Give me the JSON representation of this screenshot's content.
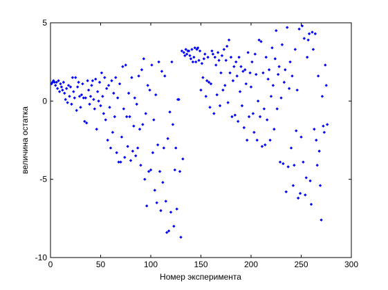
{
  "chart_data": {
    "type": "scatter",
    "xlabel": "Номер эксперимента",
    "ylabel": "величина остатка",
    "xlim": [
      0,
      300
    ],
    "ylim": [
      -10,
      5
    ],
    "xticks": [
      0,
      50,
      100,
      150,
      200,
      250,
      300
    ],
    "yticks": [
      -10,
      -5,
      0,
      5
    ],
    "color": "#0000ff",
    "x": [
      1,
      2,
      3,
      4,
      5,
      6,
      7,
      8,
      9,
      10,
      11,
      12,
      13,
      14,
      15,
      16,
      17,
      18,
      19,
      20,
      21,
      22,
      23,
      24,
      25,
      26,
      27,
      28,
      29,
      30,
      31,
      32,
      33,
      34,
      35,
      36,
      37,
      38,
      39,
      40,
      41,
      42,
      43,
      44,
      45,
      46,
      47,
      48,
      49,
      50,
      51,
      52,
      53,
      54,
      55,
      56,
      57,
      58,
      59,
      60,
      61,
      62,
      63,
      64,
      65,
      66,
      67,
      68,
      69,
      70,
      71,
      72,
      73,
      74,
      75,
      76,
      77,
      78,
      79,
      80,
      81,
      82,
      83,
      84,
      85,
      86,
      87,
      88,
      89,
      90,
      91,
      92,
      93,
      94,
      95,
      96,
      97,
      98,
      99,
      100,
      101,
      102,
      103,
      104,
      105,
      106,
      107,
      108,
      109,
      110,
      111,
      112,
      113,
      114,
      115,
      116,
      117,
      118,
      119,
      120,
      121,
      122,
      123,
      124,
      125,
      126,
      127,
      128,
      129,
      130,
      131,
      132,
      133,
      134,
      135,
      136,
      137,
      138,
      139,
      140,
      141,
      142,
      143,
      144,
      145,
      146,
      147,
      148,
      149,
      150,
      151,
      152,
      153,
      154,
      155,
      156,
      157,
      158,
      159,
      160,
      161,
      162,
      163,
      164,
      165,
      166,
      167,
      168,
      169,
      170,
      171,
      172,
      173,
      174,
      175,
      176,
      177,
      178,
      179,
      180,
      181,
      182,
      183,
      184,
      185,
      186,
      187,
      188,
      189,
      190,
      191,
      192,
      193,
      194,
      195,
      196,
      197,
      198,
      199,
      200,
      201,
      202,
      203,
      204,
      205,
      206,
      207,
      208,
      209,
      210,
      211,
      212,
      213,
      214,
      215,
      216,
      217,
      218,
      219,
      220,
      221,
      222,
      223,
      224,
      225,
      226,
      227,
      228,
      229,
      230,
      231,
      232,
      233,
      234,
      235,
      236,
      237,
      238,
      239,
      240,
      241,
      242,
      243,
      244,
      245,
      246,
      247,
      248,
      249,
      250,
      251,
      252,
      253,
      254,
      255,
      256,
      257,
      258,
      259,
      260,
      261,
      262,
      263,
      264,
      265,
      266,
      267,
      268,
      269,
      270,
      271,
      272,
      273,
      274,
      275,
      276
    ],
    "y": [
      1.1,
      1.2,
      1.3,
      1.2,
      1.0,
      1.2,
      0.8,
      1.3,
      0.6,
      1.1,
      0.9,
      0.7,
      1.2,
      0.5,
      0.1,
      0.8,
      -0.1,
      1.0,
      0.3,
      0.9,
      -0.2,
      1.5,
      0.6,
      0.2,
      1.5,
      -0.6,
      0.9,
      1.2,
      0.3,
      -0.4,
      0.4,
      1.1,
      0.2,
      -1.3,
      0.2,
      -1.4,
      1.3,
      0.7,
      -0.2,
      0.3,
      1.0,
      1.3,
      0.1,
      -0.5,
      1.4,
      -1.8,
      0.6,
      0.0,
      1.2,
      -0.3,
      1.8,
      0.3,
      -0.8,
      1.5,
      -1.2,
      0.8,
      -2.5,
      1.0,
      -0.4,
      -3.0,
      1.3,
      -2.0,
      0.5,
      -1.0,
      1.5,
      -3.3,
      0.2,
      -3.9,
      1.1,
      -3.9,
      -2.3,
      2.2,
      -0.5,
      -3.6,
      2.3,
      -1.0,
      -2.9,
      0.5,
      -1.0,
      -3.8,
      1.5,
      -3.2,
      -1.6,
      0.2,
      -3.5,
      -0.2,
      -3.0,
      1.6,
      -1.8,
      -4.1,
      2.0,
      -1.5,
      2.7,
      -5.0,
      -0.8,
      -6.7,
      1.0,
      -4.5,
      0.7,
      -4.4,
      2.3,
      -3.3,
      -1.2,
      -5.7,
      0.4,
      -6.5,
      -2.8,
      2.5,
      -4.5,
      -7.0,
      1.9,
      -5.2,
      -3.0,
      1.6,
      -6.4,
      -8.4,
      -2.4,
      -8.3,
      -0.7,
      -7.1,
      2.5,
      -1.5,
      -8.0,
      -4.4,
      -3.0,
      -6.9,
      0.1,
      0.1,
      -4.5,
      -8.7,
      3.2,
      -3.7,
      3.1,
      2.9,
      3.3,
      3.0,
      3.2,
      3.2,
      2.9,
      2.7,
      3.3,
      2.5,
      2.8,
      3.4,
      2.5,
      3.3,
      3.4,
      2.6,
      3.2,
      0.7,
      2.4,
      1.5,
      2.7,
      3.0,
      0.3,
      1.3,
      2.8,
      1.2,
      -0.4,
      1.1,
      3.2,
      3.0,
      -0.8,
      2.8,
      2.3,
      0.4,
      3.1,
      2.6,
      -0.3,
      1.8,
      2.9,
      0.7,
      3.3,
      1.0,
      2.6,
      3.5,
      -0.1,
      3.9,
      1.8,
      2.8,
      -1.0,
      1.3,
      2.2,
      -0.9,
      2.5,
      1.6,
      -1.3,
      2.8,
      0.6,
      2.2,
      -0.3,
      1.9,
      -1.7,
      2.0,
      1.1,
      -2.5,
      3.1,
      -1.0,
      1.8,
      0.9,
      2.5,
      -0.8,
      -2.0,
      3.0,
      1.7,
      -2.5,
      0.0,
      3.9,
      -1.0,
      3.8,
      -2.9,
      1.8,
      -0.5,
      -2.8,
      2.8,
      -1.2,
      1.4,
      2.0,
      -2.5,
      0.3,
      3.4,
      1.0,
      -1.8,
      2.7,
      4.5,
      -0.5,
      1.7,
      2.2,
      -3.9,
      0.2,
      3.6,
      -4.0,
      1.2,
      2.0,
      -5.8,
      4.7,
      -4.2,
      0.8,
      2.5,
      -3.0,
      1.6,
      -5.4,
      -4.1,
      3.3,
      -1.9,
      0.7,
      -6.2,
      4.6,
      -5.9,
      -2.3,
      4.8,
      -3.9,
      4.0,
      -6.0,
      -4.9,
      2.8,
      3.9,
      4.3,
      -5.1,
      -6.6,
      4.4,
      3.3,
      -1.8,
      4.3,
      -2.5,
      -4.1,
      1.6,
      -3.2,
      -5.4,
      -7.6,
      0.3,
      -1.6,
      -2.0,
      2.3,
      1.0,
      -1.5
    ]
  }
}
